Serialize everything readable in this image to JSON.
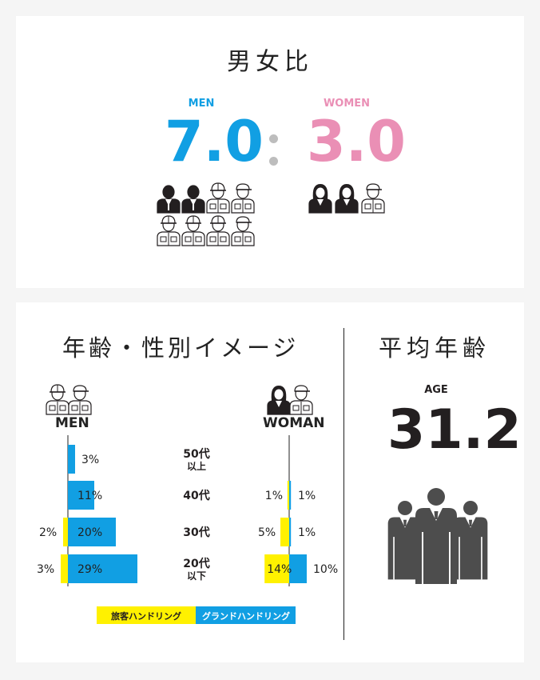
{
  "ratio": {
    "title": "男女比",
    "men_label": "MEN",
    "men_value": "7.0",
    "women_label": "WOMEN",
    "women_value": "3.0"
  },
  "colors": {
    "men": "#119fe3",
    "women": "#ea8fb5",
    "yellow": "#fff100",
    "dark": "#231f20",
    "gray": "#4d4d4d"
  },
  "age_section": {
    "title": "年齢・性別イメージ",
    "men_label": "MEN",
    "women_label": "WOMAN"
  },
  "average_age": {
    "title": "平均年齢",
    "label": "AGE",
    "value": "31.2"
  },
  "chart_data": {
    "type": "bar",
    "categories": [
      {
        "line1": "50代",
        "line2": "以上"
      },
      {
        "line1": "40代",
        "line2": ""
      },
      {
        "line1": "30代",
        "line2": ""
      },
      {
        "line1": "20代",
        "line2": "以下"
      }
    ],
    "unit": "%",
    "series": [
      {
        "name": "旅客ハンドリング",
        "color": "#fff100",
        "men": [
          0,
          0,
          2,
          3
        ],
        "women": [
          0,
          1,
          5,
          14
        ]
      },
      {
        "name": "グランドハンドリング",
        "color": "#119fe3",
        "men": [
          3,
          11,
          20,
          29
        ],
        "women": [
          0,
          1,
          1,
          10
        ]
      }
    ],
    "legend": "bottom-center"
  }
}
